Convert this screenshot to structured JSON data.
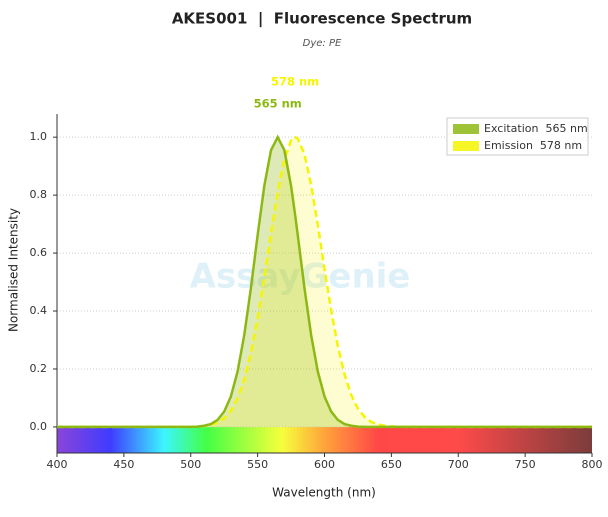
{
  "chart_data": {
    "type": "line",
    "title": "AKES001  |  Fluorescence Spectrum",
    "subtitle": "Dye: PE",
    "x_label": "Wavelength (nm)",
    "y_label": "Normalised Intensity",
    "watermark": "AssayGenie",
    "x": [
      400,
      480,
      485,
      490,
      495,
      500,
      505,
      510,
      515,
      520,
      525,
      530,
      535,
      540,
      545,
      550,
      555,
      560,
      565,
      570,
      575,
      578,
      580,
      585,
      590,
      595,
      600,
      605,
      610,
      615,
      620,
      625,
      630,
      635,
      640,
      645,
      650,
      655,
      660,
      665,
      670,
      675,
      680,
      800
    ],
    "series": [
      {
        "name": "Excitation  565 nm",
        "color": "#8db814",
        "dashed": false,
        "peak": 565,
        "peak_label": "565 nm",
        "values": [
          0,
          0,
          0,
          0,
          0,
          0,
          0.001,
          0.004,
          0.01,
          0.024,
          0.053,
          0.105,
          0.191,
          0.317,
          0.48,
          0.662,
          0.832,
          0.955,
          1,
          0.955,
          0.832,
          0.733,
          0.662,
          0.48,
          0.317,
          0.191,
          0.105,
          0.053,
          0.024,
          0.01,
          0.004,
          0.001,
          0,
          0,
          0,
          0,
          0,
          0,
          0,
          0,
          0,
          0,
          0,
          0
        ]
      },
      {
        "name": "Emission  578 nm",
        "color": "#f5f500",
        "dashed": true,
        "peak": 578,
        "peak_label": "578 nm",
        "values": [
          0,
          0,
          0,
          0,
          0,
          0,
          0.001,
          0.003,
          0.007,
          0.015,
          0.03,
          0.056,
          0.099,
          0.164,
          0.256,
          0.375,
          0.516,
          0.667,
          0.81,
          0.923,
          0.989,
          1,
          0.995,
          0.941,
          0.835,
          0.697,
          0.546,
          0.402,
          0.278,
          0.181,
          0.11,
          0.063,
          0.034,
          0.017,
          0.008,
          0.004,
          0.002,
          0.001,
          0,
          0,
          0,
          0,
          0,
          0
        ]
      }
    ],
    "xlim": [
      400,
      800
    ],
    "ylim": [
      -0.09,
      1.08
    ],
    "xticks": [
      400,
      450,
      500,
      550,
      600,
      650,
      700,
      750,
      800
    ],
    "yticks": [
      {
        "value": 0,
        "label": "0.0"
      },
      0.2,
      0.4,
      0.6,
      0.8,
      {
        "value": 1,
        "label": "1.0"
      }
    ],
    "grid": true,
    "legend": "upper right"
  }
}
